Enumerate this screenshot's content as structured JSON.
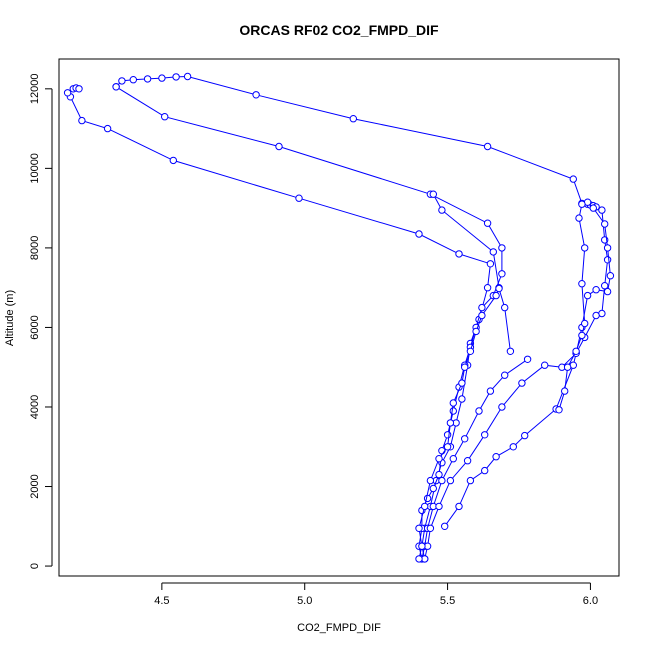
{
  "chart_data": {
    "type": "line",
    "title": "ORCAS RF02 CO2_FMPD_DIF",
    "xlabel": "CO2_FMPD_DIF",
    "ylabel": "Altitude (m)",
    "xlim": [
      4.14,
      6.1
    ],
    "ylim": [
      -250,
      12750
    ],
    "xticks": [
      "4.5",
      "5.0",
      "5.5",
      "6.0"
    ],
    "xtick_values": [
      4.5,
      5.0,
      5.5,
      6.0
    ],
    "yticks": [
      "0",
      "2000",
      "4000",
      "6000",
      "8000",
      "10000",
      "12000"
    ],
    "ytick_values": [
      0,
      2000,
      4000,
      6000,
      8000,
      10000,
      12000
    ],
    "grid": false,
    "line_color": "#0000ff",
    "marker": "open-circle",
    "series": [
      {
        "points": [
          [
            5.42,
            180
          ],
          [
            5.41,
            500
          ],
          [
            5.42,
            950
          ],
          [
            5.44,
            1500
          ],
          [
            5.46,
            2150
          ],
          [
            5.48,
            2600
          ],
          [
            5.51,
            3000
          ],
          [
            5.53,
            3600
          ],
          [
            5.55,
            4200
          ],
          [
            5.57,
            5050
          ],
          [
            5.58,
            5600
          ],
          [
            5.61,
            6200
          ],
          [
            5.64,
            7000
          ],
          [
            5.65,
            7600
          ],
          [
            5.54,
            7850
          ],
          [
            5.4,
            8350
          ],
          [
            4.98,
            9250
          ],
          [
            4.54,
            10200
          ],
          [
            4.31,
            11000
          ],
          [
            4.22,
            11200
          ],
          [
            4.18,
            11800
          ],
          [
            4.17,
            11900
          ],
          [
            4.19,
            12000
          ],
          [
            4.2,
            12020
          ],
          [
            4.21,
            12000
          ]
        ]
      },
      {
        "points": [
          [
            4.34,
            12050
          ],
          [
            4.36,
            12200
          ],
          [
            4.4,
            12230
          ],
          [
            4.45,
            12250
          ],
          [
            4.5,
            12270
          ],
          [
            4.55,
            12300
          ],
          [
            4.59,
            12310
          ],
          [
            4.83,
            11850
          ],
          [
            5.17,
            11250
          ],
          [
            5.64,
            10550
          ],
          [
            5.94,
            9730
          ],
          [
            5.97,
            9120
          ],
          [
            5.99,
            9100
          ],
          [
            6.0,
            9080
          ],
          [
            6.01,
            9060
          ],
          [
            6.02,
            9030
          ],
          [
            6.04,
            8950
          ],
          [
            6.05,
            8200
          ],
          [
            6.06,
            7700
          ],
          [
            6.05,
            7050
          ],
          [
            6.04,
            6350
          ],
          [
            6.02,
            6300
          ],
          [
            5.98,
            5750
          ],
          [
            5.95,
            5350
          ],
          [
            5.94,
            5050
          ],
          [
            5.88,
            3950
          ],
          [
            5.77,
            3280
          ],
          [
            5.73,
            3000
          ],
          [
            5.67,
            2750
          ],
          [
            5.63,
            2400
          ],
          [
            5.58,
            2150
          ],
          [
            5.54,
            1500
          ],
          [
            5.49,
            1000
          ]
        ]
      },
      {
        "points": [
          [
            5.41,
            180
          ],
          [
            5.4,
            500
          ],
          [
            5.41,
            950
          ],
          [
            5.41,
            1400
          ],
          [
            5.43,
            1700
          ],
          [
            5.45,
            1950
          ],
          [
            5.47,
            2300
          ],
          [
            5.48,
            2900
          ],
          [
            5.5,
            3300
          ],
          [
            5.52,
            3900
          ],
          [
            5.54,
            4500
          ],
          [
            5.56,
            5050
          ],
          [
            5.58,
            5500
          ],
          [
            5.6,
            6000
          ],
          [
            5.62,
            6500
          ],
          [
            5.66,
            6800
          ],
          [
            5.69,
            7350
          ],
          [
            5.69,
            8000
          ],
          [
            5.64,
            8620
          ],
          [
            5.44,
            9350
          ],
          [
            4.91,
            10550
          ],
          [
            4.51,
            11300
          ],
          [
            4.34,
            12050
          ]
        ]
      },
      {
        "points": [
          [
            5.41,
            180
          ],
          [
            5.42,
            500
          ],
          [
            5.43,
            950
          ],
          [
            5.45,
            1500
          ],
          [
            5.48,
            2150
          ],
          [
            5.52,
            2700
          ],
          [
            5.56,
            3200
          ],
          [
            5.61,
            3900
          ],
          [
            5.65,
            4400
          ],
          [
            5.7,
            4800
          ],
          [
            5.78,
            5200
          ]
        ]
      },
      {
        "points": [
          [
            5.42,
            180
          ],
          [
            5.43,
            500
          ],
          [
            5.44,
            950
          ],
          [
            5.47,
            1500
          ],
          [
            5.51,
            2150
          ],
          [
            5.57,
            2650
          ],
          [
            5.63,
            3300
          ],
          [
            5.69,
            4000
          ],
          [
            5.76,
            4600
          ],
          [
            5.84,
            5050
          ],
          [
            5.9,
            5000
          ],
          [
            5.95,
            5350
          ],
          [
            5.97,
            6000
          ],
          [
            5.99,
            6800
          ],
          [
            6.02,
            6950
          ],
          [
            6.06,
            6900
          ],
          [
            6.07,
            7300
          ],
          [
            6.06,
            8000
          ],
          [
            6.05,
            8600
          ],
          [
            6.01,
            9000
          ],
          [
            5.99,
            9150
          ]
        ]
      },
      {
        "points": [
          [
            5.4,
            180
          ],
          [
            5.41,
            500
          ],
          [
            5.4,
            950
          ],
          [
            5.42,
            1500
          ],
          [
            5.44,
            2150
          ],
          [
            5.47,
            2700
          ],
          [
            5.5,
            3000
          ],
          [
            5.51,
            3600
          ],
          [
            5.52,
            4100
          ],
          [
            5.55,
            4600
          ],
          [
            5.56,
            5000
          ],
          [
            5.58,
            5400
          ],
          [
            5.6,
            5900
          ],
          [
            5.62,
            6300
          ],
          [
            5.67,
            6800
          ],
          [
            5.68,
            7000
          ],
          [
            5.66,
            7900
          ],
          [
            5.48,
            8950
          ],
          [
            5.45,
            9350
          ]
        ]
      },
      {
        "points": [
          [
            5.89,
            3930
          ],
          [
            5.91,
            4400
          ],
          [
            5.92,
            5000
          ],
          [
            5.95,
            5400
          ],
          [
            5.97,
            5800
          ],
          [
            5.98,
            6100
          ],
          [
            5.97,
            7100
          ],
          [
            5.98,
            8000
          ],
          [
            5.96,
            8750
          ],
          [
            5.97,
            9100
          ]
        ]
      },
      {
        "points": [
          [
            5.68,
            6980
          ],
          [
            5.7,
            6500
          ],
          [
            5.72,
            5400
          ]
        ]
      }
    ]
  }
}
